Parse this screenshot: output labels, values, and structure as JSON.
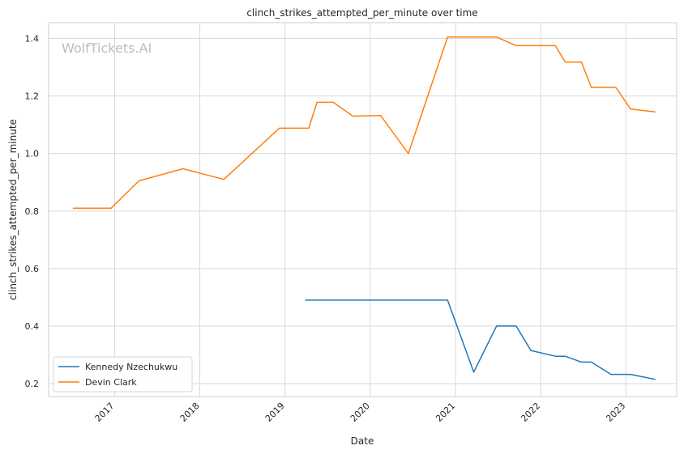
{
  "chart_data": {
    "type": "line",
    "title": "clinch_strikes_attempted_per_minute over time",
    "xlabel": "Date",
    "ylabel": "clinch_strikes_attempted_per_minute",
    "watermark": "WolfTickets.AI",
    "grid": true,
    "legend_position": "lower-left",
    "xlim": [
      "2016-03-24",
      "2023-08-07"
    ],
    "ylim": [
      0.155,
      1.455
    ],
    "x_ticks": [
      "2017",
      "2018",
      "2019",
      "2020",
      "2021",
      "2022",
      "2023"
    ],
    "y_ticks": [
      "0.2",
      "0.4",
      "0.6",
      "0.8",
      "1.0",
      "1.2",
      "1.4"
    ],
    "series": [
      {
        "name": "Kennedy Nzechukwu",
        "color": "#1f77b4",
        "points": [
          [
            "2019-03-30",
            0.49
          ],
          [
            "2020-11-28",
            0.49
          ],
          [
            "2021-03-20",
            0.24
          ],
          [
            "2021-06-26",
            0.4
          ],
          [
            "2021-09-18",
            0.4
          ],
          [
            "2021-11-20",
            0.315
          ],
          [
            "2022-03-05",
            0.295
          ],
          [
            "2022-04-16",
            0.295
          ],
          [
            "2022-06-25",
            0.275
          ],
          [
            "2022-08-06",
            0.275
          ],
          [
            "2022-10-29",
            0.232
          ],
          [
            "2023-01-21",
            0.232
          ],
          [
            "2023-05-06",
            0.215
          ]
        ]
      },
      {
        "name": "Devin Clark",
        "color": "#ff7f0e",
        "points": [
          [
            "2016-07-08",
            0.81
          ],
          [
            "2016-12-17",
            0.81
          ],
          [
            "2017-04-15",
            0.905
          ],
          [
            "2017-10-21",
            0.947
          ],
          [
            "2018-04-14",
            0.91
          ],
          [
            "2018-12-08",
            1.088
          ],
          [
            "2019-04-13",
            1.088
          ],
          [
            "2019-05-18",
            1.178
          ],
          [
            "2019-07-27",
            1.178
          ],
          [
            "2019-10-19",
            1.13
          ],
          [
            "2020-02-15",
            1.132
          ],
          [
            "2020-06-13",
            1.0
          ],
          [
            "2020-11-28",
            1.405
          ],
          [
            "2021-06-26",
            1.405
          ],
          [
            "2021-09-18",
            1.375
          ],
          [
            "2022-03-05",
            1.375
          ],
          [
            "2022-04-16",
            1.318
          ],
          [
            "2022-06-25",
            1.318
          ],
          [
            "2022-08-06",
            1.23
          ],
          [
            "2022-11-19",
            1.23
          ],
          [
            "2023-01-21",
            1.155
          ],
          [
            "2023-05-06",
            1.145
          ]
        ]
      }
    ]
  }
}
